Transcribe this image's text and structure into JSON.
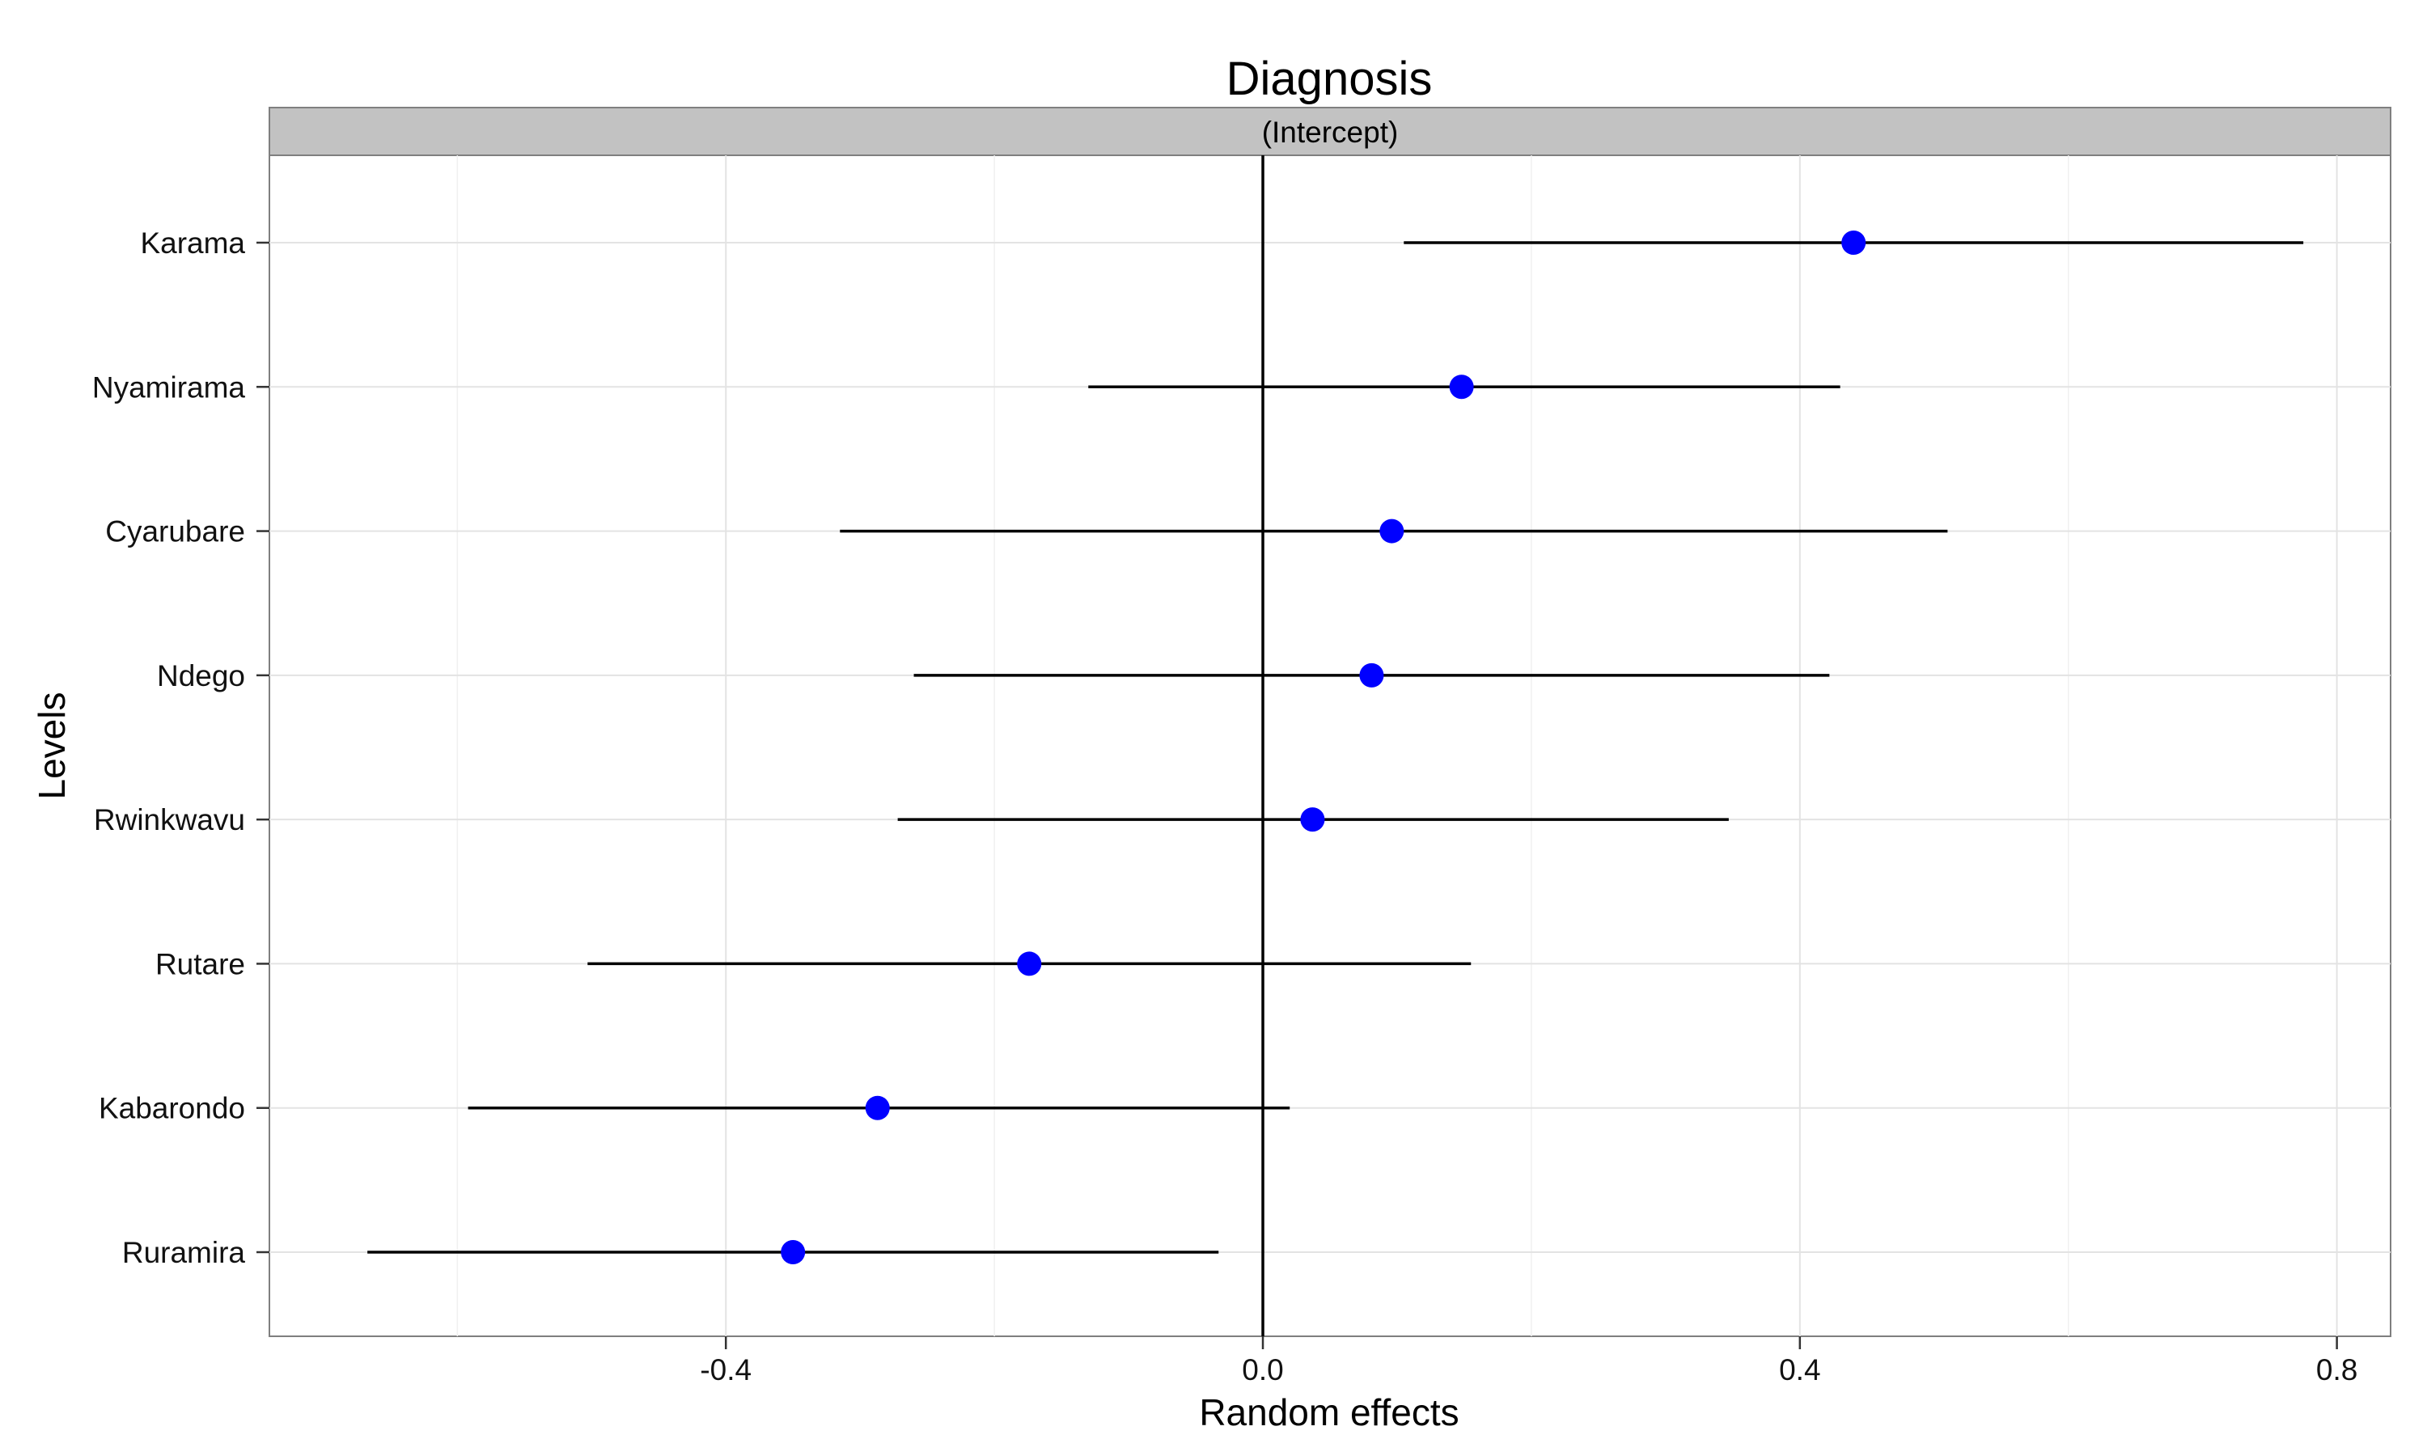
{
  "chart_data": {
    "type": "scatter",
    "title": "Diagnosis",
    "facet_label": "(Intercept)",
    "xlabel": "Random effects",
    "ylabel": "Levels",
    "xlim": [
      -0.74,
      0.84
    ],
    "x_ticks": [
      "-0.4",
      "0.0",
      "0.4",
      "0.8"
    ],
    "x_tick_values": [
      -0.4,
      0.0,
      0.4,
      0.8
    ],
    "reference_line_x": 0,
    "grid": true,
    "legend": "none",
    "point_color": "#0000ff",
    "interval_color": "#000000",
    "levels": [
      {
        "name": "Karama",
        "estimate": 0.44,
        "lower": 0.105,
        "upper": 0.775
      },
      {
        "name": "Nyamirama",
        "estimate": 0.148,
        "lower": -0.13,
        "upper": 0.43
      },
      {
        "name": "Cyarubare",
        "estimate": 0.096,
        "lower": -0.315,
        "upper": 0.51
      },
      {
        "name": "Ndego",
        "estimate": 0.081,
        "lower": -0.26,
        "upper": 0.422
      },
      {
        "name": "Rwinkwavu",
        "estimate": 0.037,
        "lower": -0.272,
        "upper": 0.347
      },
      {
        "name": "Rutare",
        "estimate": -0.174,
        "lower": -0.503,
        "upper": 0.155
      },
      {
        "name": "Kabarondo",
        "estimate": -0.287,
        "lower": -0.592,
        "upper": 0.02
      },
      {
        "name": "Ruramira",
        "estimate": -0.35,
        "lower": -0.667,
        "upper": -0.033
      }
    ]
  }
}
